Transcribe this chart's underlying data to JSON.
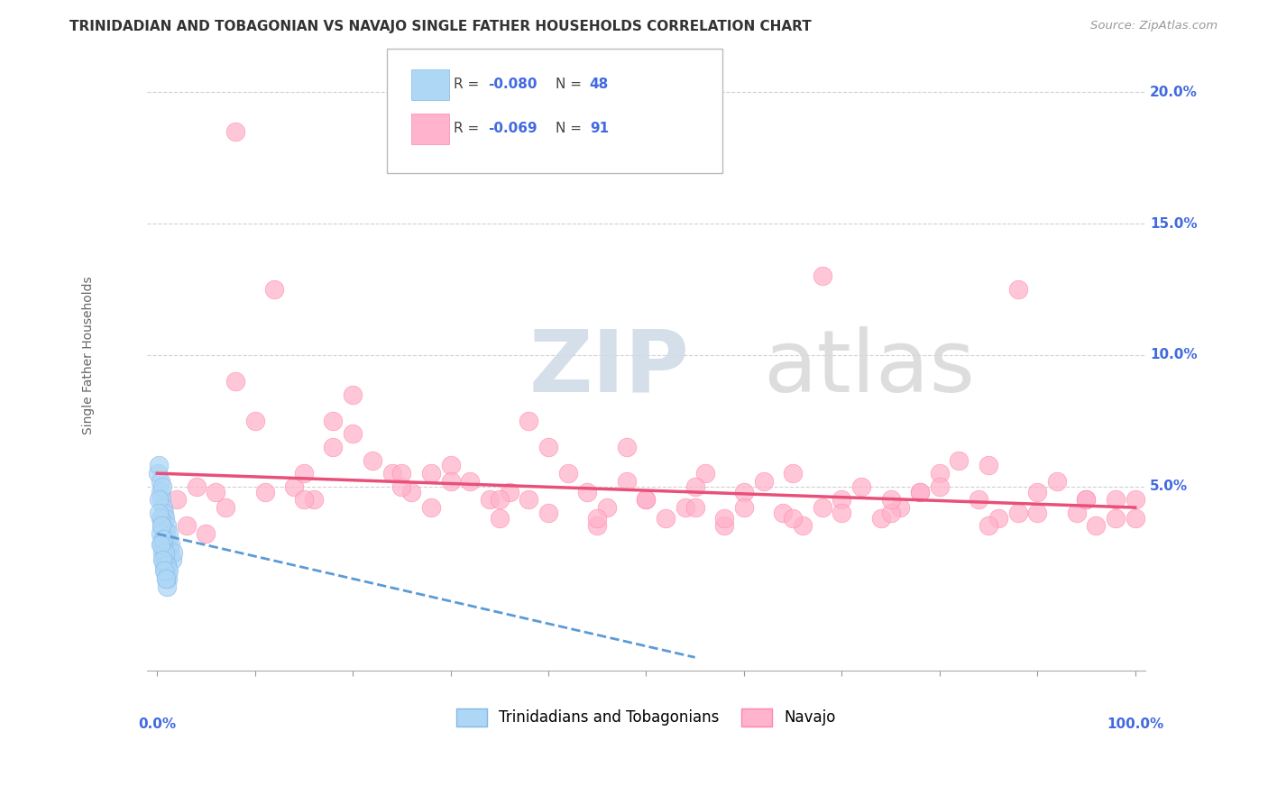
{
  "title": "TRINIDADIAN AND TOBAGONIAN VS NAVAJO SINGLE FATHER HOUSEHOLDS CORRELATION CHART",
  "source": "Source: ZipAtlas.com",
  "ylabel": "Single Father Households",
  "legend1_r": "R = -0.080",
  "legend1_n": "N = 48",
  "legend2_r": "R = -0.069",
  "legend2_n": "N = 91",
  "legend_bottom_label1": "Trinidadians and Tobagonians",
  "legend_bottom_label2": "Navajo",
  "blue_x": [
    0.1,
    0.2,
    0.3,
    0.3,
    0.4,
    0.5,
    0.5,
    0.6,
    0.7,
    0.7,
    0.8,
    0.9,
    1.0,
    1.0,
    1.1,
    1.2,
    1.3,
    1.4,
    1.5,
    1.6,
    0.2,
    0.3,
    0.4,
    0.5,
    0.6,
    0.7,
    0.8,
    0.9,
    1.0,
    1.1,
    0.3,
    0.4,
    0.5,
    0.6,
    0.7,
    0.8,
    0.9,
    1.0,
    0.2,
    0.4,
    0.6,
    0.8,
    1.0,
    1.2,
    0.3,
    0.5,
    0.7,
    0.9
  ],
  "blue_y": [
    5.5,
    5.8,
    5.2,
    4.8,
    4.5,
    5.0,
    3.8,
    4.2,
    3.5,
    4.0,
    3.8,
    3.2,
    3.5,
    3.0,
    2.8,
    3.2,
    2.5,
    2.8,
    2.2,
    2.5,
    4.5,
    3.8,
    3.5,
    3.0,
    2.8,
    2.5,
    2.2,
    2.0,
    1.8,
    1.5,
    3.2,
    2.8,
    2.5,
    2.2,
    2.0,
    1.8,
    1.5,
    1.2,
    4.0,
    3.5,
    3.0,
    2.5,
    2.0,
    1.8,
    2.8,
    2.2,
    1.8,
    1.5
  ],
  "pink_x": [
    2.0,
    4.0,
    6.0,
    8.0,
    10.0,
    12.0,
    14.0,
    16.0,
    18.0,
    20.0,
    22.0,
    24.0,
    26.0,
    28.0,
    30.0,
    32.0,
    34.0,
    36.0,
    38.0,
    40.0,
    42.0,
    44.0,
    46.0,
    48.0,
    50.0,
    52.0,
    54.0,
    56.0,
    58.0,
    60.0,
    62.0,
    64.0,
    66.0,
    68.0,
    70.0,
    72.0,
    74.0,
    76.0,
    78.0,
    80.0,
    82.0,
    84.0,
    86.0,
    88.0,
    90.0,
    92.0,
    94.0,
    96.0,
    98.0,
    100.0,
    5.0,
    15.0,
    25.0,
    35.0,
    45.0,
    55.0,
    65.0,
    75.0,
    85.0,
    95.0,
    3.0,
    7.0,
    11.0,
    15.0,
    20.0,
    25.0,
    30.0,
    35.0,
    40.0,
    45.0,
    50.0,
    55.0,
    60.0,
    65.0,
    70.0,
    75.0,
    80.0,
    85.0,
    90.0,
    95.0,
    100.0,
    8.0,
    18.0,
    28.0,
    38.0,
    48.0,
    58.0,
    68.0,
    78.0,
    88.0,
    98.0
  ],
  "pink_y": [
    4.5,
    5.0,
    4.8,
    18.5,
    7.5,
    12.5,
    5.0,
    4.5,
    6.5,
    8.5,
    6.0,
    5.5,
    4.8,
    4.2,
    5.8,
    5.2,
    4.5,
    4.8,
    7.5,
    6.5,
    5.5,
    4.8,
    4.2,
    6.5,
    4.5,
    3.8,
    4.2,
    5.5,
    3.5,
    4.8,
    5.2,
    4.0,
    3.5,
    13.0,
    4.5,
    5.0,
    3.8,
    4.2,
    4.8,
    5.5,
    6.0,
    4.5,
    3.8,
    12.5,
    4.8,
    5.2,
    4.0,
    3.5,
    3.8,
    4.5,
    3.2,
    4.5,
    5.0,
    3.8,
    3.5,
    4.2,
    5.5,
    4.0,
    5.8,
    4.5,
    3.5,
    4.2,
    4.8,
    5.5,
    7.0,
    5.5,
    5.2,
    4.5,
    4.0,
    3.8,
    4.5,
    5.0,
    4.2,
    3.8,
    4.0,
    4.5,
    5.0,
    3.5,
    4.0,
    4.5,
    3.8,
    9.0,
    7.5,
    5.5,
    4.5,
    5.2,
    3.8,
    4.2,
    4.8,
    4.0,
    4.5
  ],
  "xlim": [
    0,
    100
  ],
  "ylim": [
    0,
    20
  ],
  "yticks": [
    0,
    5,
    10,
    15,
    20
  ],
  "ytick_labels": [
    "0.0%",
    "5.0%",
    "10.0%",
    "15.0%",
    "20.0%"
  ],
  "xtick_labels": [
    "0.0%",
    "100.0%"
  ],
  "pink_line_start_x": 0,
  "pink_line_start_y": 5.5,
  "pink_line_end_x": 100,
  "pink_line_end_y": 4.2,
  "blue_line_start_x": 0,
  "blue_line_start_y": 3.2,
  "blue_line_end_x": 55,
  "blue_line_end_y": -1.5
}
